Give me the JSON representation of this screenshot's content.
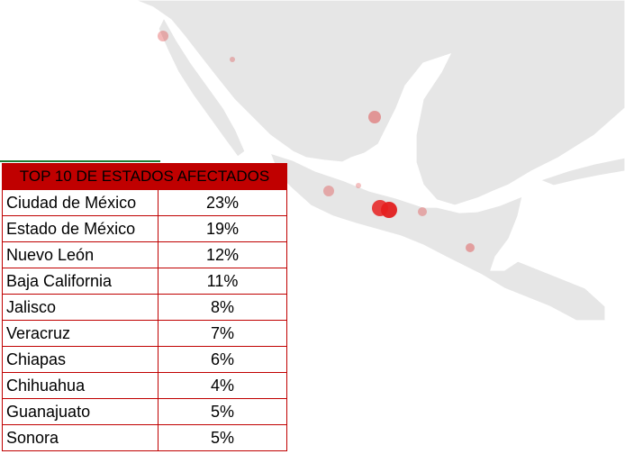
{
  "table": {
    "title": "TOP 10 DE ESTADOS AFECTADOS",
    "rows": [
      [
        "Ciudad de México",
        "23%"
      ],
      [
        "Estado de México",
        "19%"
      ],
      [
        "Nuevo León",
        "12%"
      ],
      [
        "Baja California",
        "11%"
      ],
      [
        "Jalisco",
        "8%"
      ],
      [
        "Veracruz",
        "7%"
      ],
      [
        "Chiapas",
        "6%"
      ],
      [
        "Chihuahua",
        "4%"
      ],
      [
        "Guanajuato",
        "5%"
      ],
      [
        "Sonora",
        "5%"
      ]
    ]
  }
}
